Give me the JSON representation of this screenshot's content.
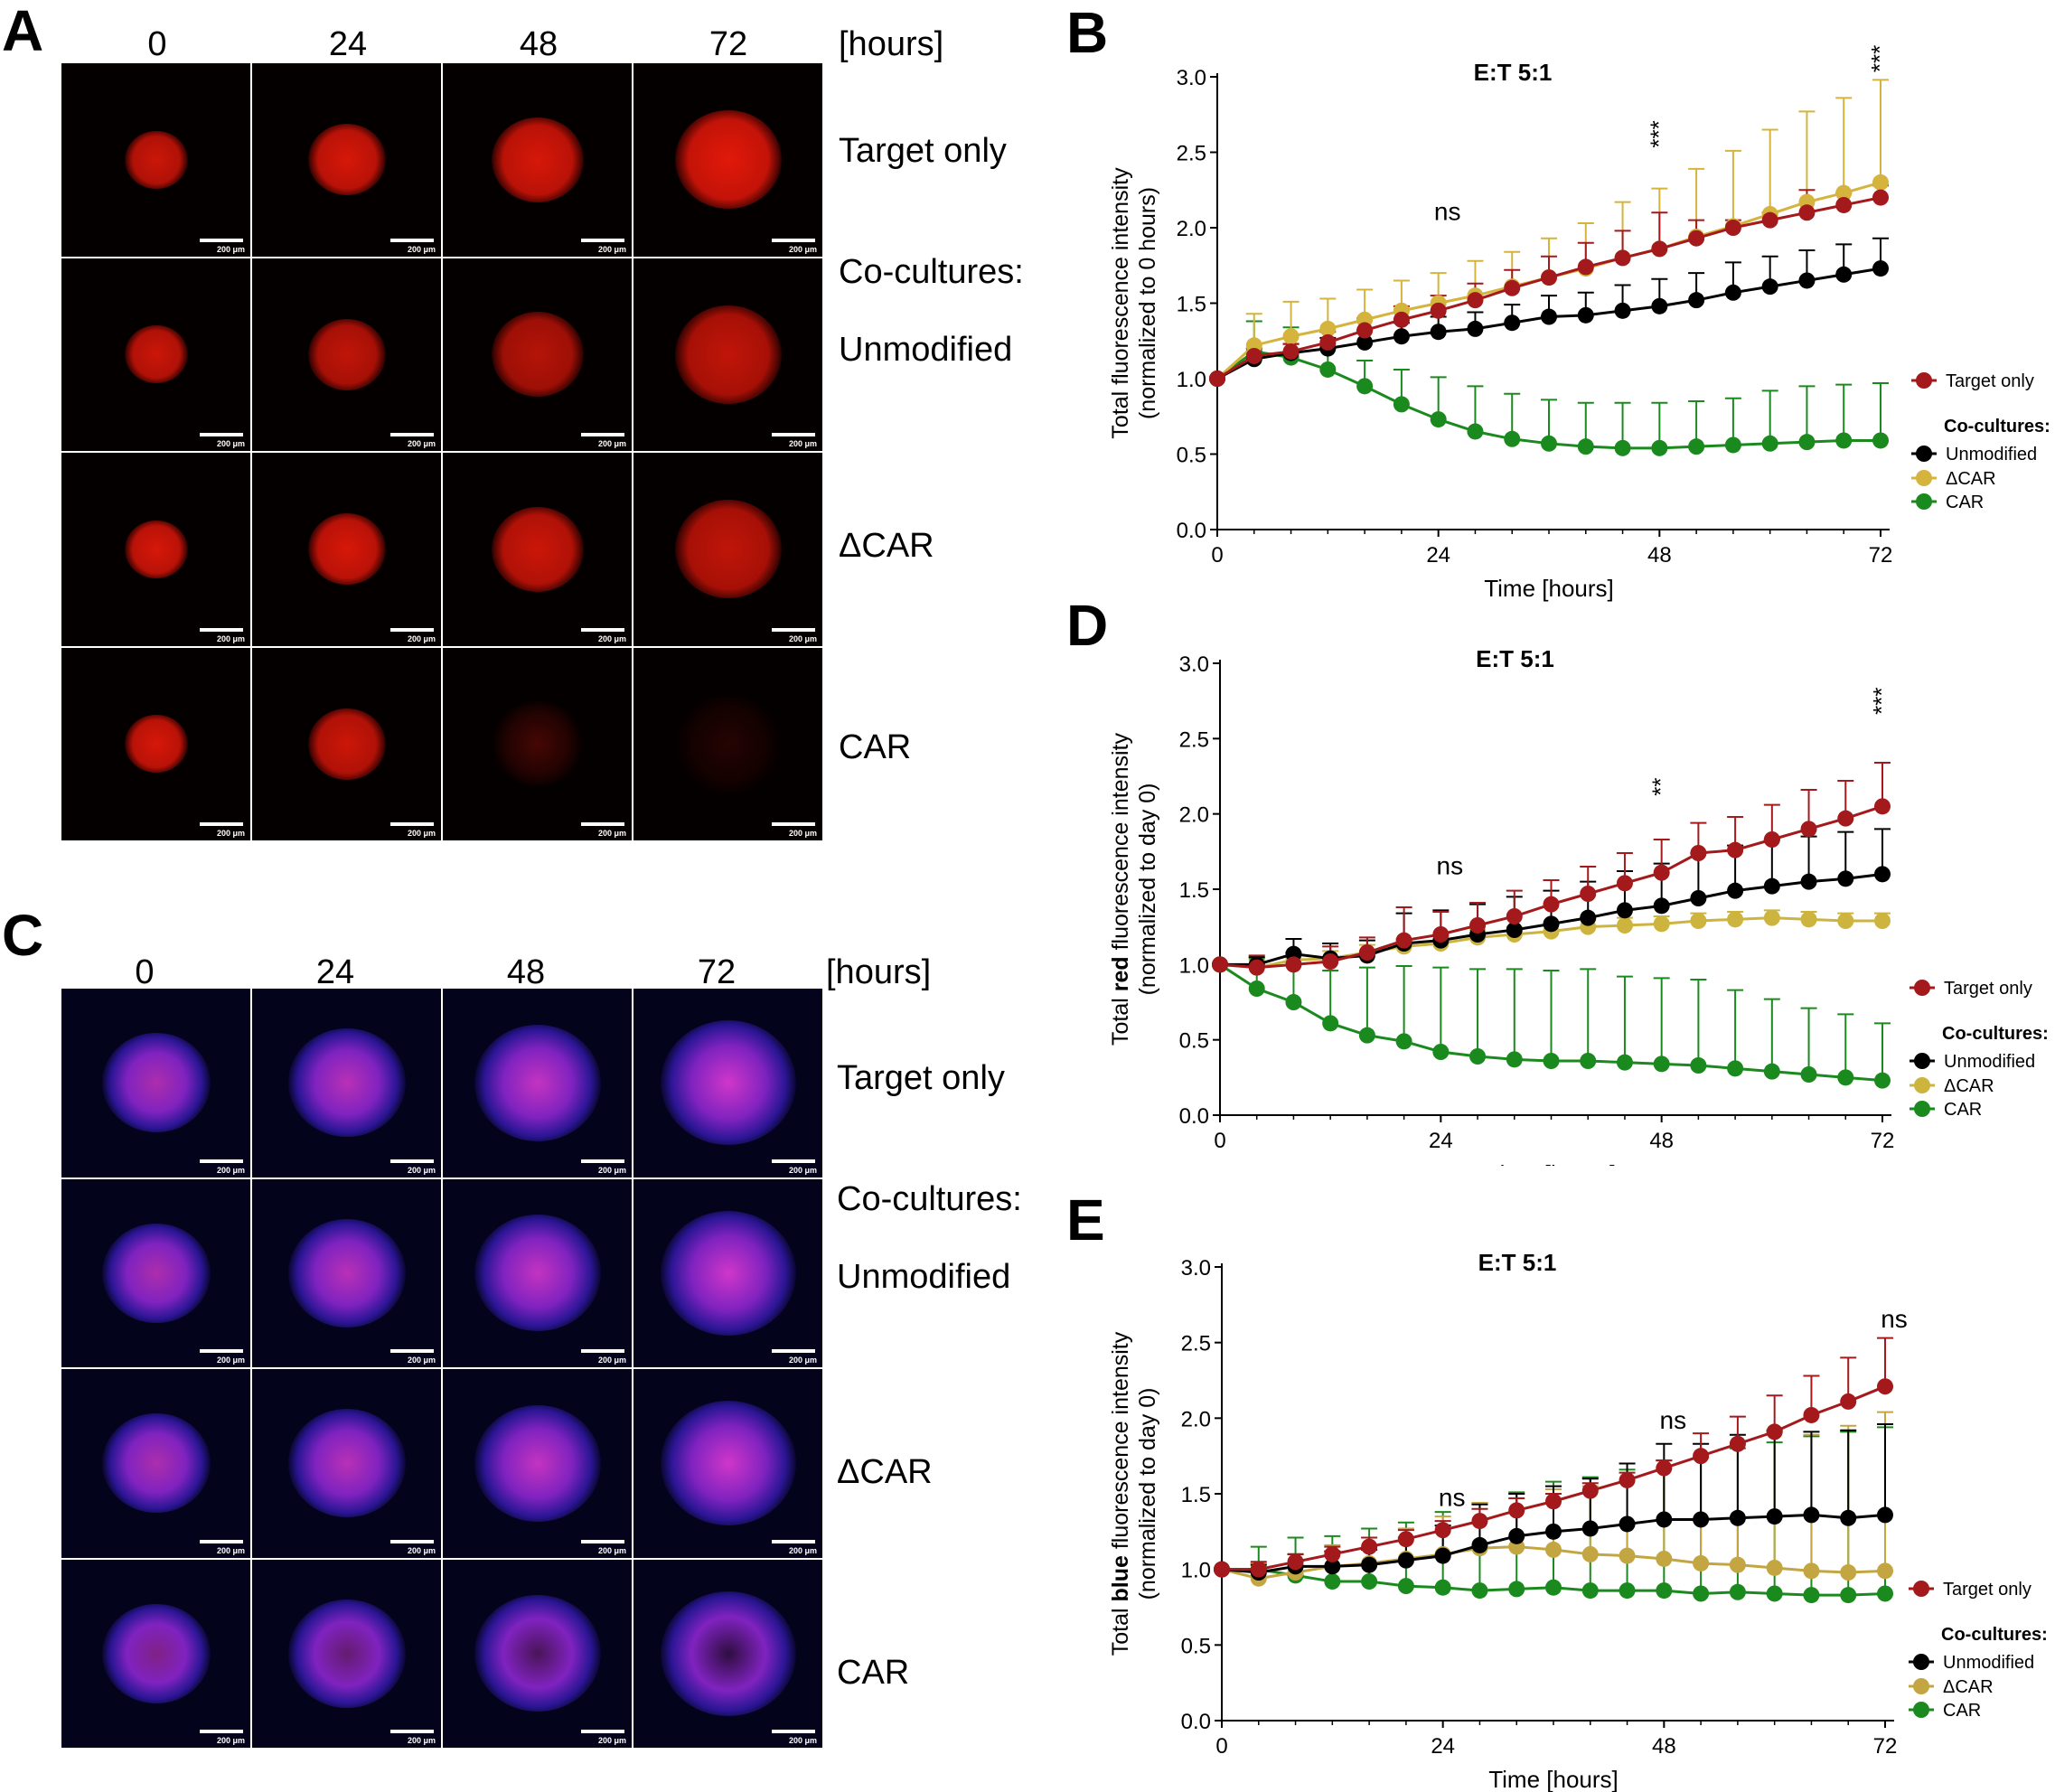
{
  "panels": {
    "A": "A",
    "B": "B",
    "C": "C",
    "D": "D",
    "E": "E"
  },
  "micrographs": {
    "time_columns": [
      "0",
      "24",
      "48",
      "72"
    ],
    "hours_label": "[hours]",
    "row_labels": [
      "Target only",
      "Co-cultures:",
      "Unmodified",
      "ΔCAR",
      "CAR"
    ],
    "scale_bar": "200 μm",
    "panel_A_intensity_per_row": [
      [
        0.9,
        0.95,
        0.95,
        1.0
      ],
      [
        0.9,
        0.85,
        0.8,
        0.85
      ],
      [
        0.95,
        0.95,
        0.9,
        0.85
      ],
      [
        0.95,
        0.9,
        0.3,
        0.15
      ]
    ]
  },
  "legend": {
    "target_only": "Target only",
    "co_cultures": "Co-cultures:",
    "unmodified": "Unmodified",
    "dcar": "ΔCAR",
    "car": "CAR"
  },
  "colors": {
    "target_only": "#a3191c",
    "unmodified": "#000000",
    "dcar_B": "#d4b43c",
    "dcar_D": "#cdb43e",
    "dcar_E": "#c3a641",
    "car": "#1b8a1e"
  },
  "chart_data": [
    {
      "id": "B",
      "type": "line",
      "title": "E:T 5:1",
      "xlabel": "Time [hours]",
      "ylabel_lines": [
        "Total fluorescence intensity",
        "(normalized to 0 hours)"
      ],
      "xlim": [
        0,
        72
      ],
      "ylim": [
        0,
        3.0
      ],
      "xticks": [
        "0",
        "24",
        "48",
        "72"
      ],
      "yticks": [
        "0.0",
        "0.5",
        "1.0",
        "1.5",
        "2.0",
        "2.5",
        "3.0"
      ],
      "x": [
        0,
        4,
        8,
        12,
        16,
        20,
        24,
        28,
        32,
        36,
        40,
        44,
        48,
        52,
        56,
        60,
        64,
        68,
        72
      ],
      "series": [
        {
          "name": "Target only",
          "values": [
            1.0,
            1.15,
            1.18,
            1.24,
            1.32,
            1.39,
            1.45,
            1.52,
            1.6,
            1.67,
            1.74,
            1.8,
            1.86,
            1.93,
            2.0,
            2.05,
            2.1,
            2.15,
            2.2
          ],
          "errors": [
            0,
            0.05,
            0.05,
            0.07,
            0.08,
            0.09,
            0.1,
            0.11,
            0.12,
            0.14,
            0.16,
            0.18,
            0.24,
            0.12,
            0.05,
            0.05,
            0.15,
            0.08,
            0.08
          ]
        },
        {
          "name": "Unmodified",
          "values": [
            1.0,
            1.13,
            1.17,
            1.2,
            1.24,
            1.28,
            1.31,
            1.33,
            1.37,
            1.41,
            1.42,
            1.45,
            1.48,
            1.52,
            1.57,
            1.61,
            1.65,
            1.69,
            1.73
          ],
          "errors": [
            0,
            0.05,
            0.06,
            0.07,
            0.08,
            0.09,
            0.1,
            0.11,
            0.12,
            0.14,
            0.15,
            0.17,
            0.18,
            0.18,
            0.2,
            0.2,
            0.2,
            0.2,
            0.2
          ]
        },
        {
          "name": "ΔCAR",
          "values": [
            1.0,
            1.22,
            1.28,
            1.33,
            1.39,
            1.45,
            1.5,
            1.55,
            1.61,
            1.67,
            1.73,
            1.8,
            1.86,
            1.94,
            2.01,
            2.09,
            2.17,
            2.23,
            2.3
          ],
          "errors": [
            0,
            0.21,
            0.23,
            0.2,
            0.2,
            0.2,
            0.2,
            0.23,
            0.23,
            0.26,
            0.3,
            0.37,
            0.4,
            0.45,
            0.5,
            0.56,
            0.6,
            0.63,
            0.68
          ]
        },
        {
          "name": "CAR",
          "values": [
            1.0,
            1.18,
            1.14,
            1.06,
            0.95,
            0.83,
            0.73,
            0.65,
            0.6,
            0.57,
            0.55,
            0.54,
            0.54,
            0.55,
            0.56,
            0.57,
            0.58,
            0.59,
            0.59
          ],
          "errors": [
            0,
            0.2,
            0.2,
            0.17,
            0.17,
            0.23,
            0.28,
            0.3,
            0.3,
            0.29,
            0.29,
            0.3,
            0.3,
            0.3,
            0.31,
            0.35,
            0.37,
            0.37,
            0.38
          ]
        }
      ],
      "annotations": [
        {
          "text": "ns",
          "x": 24,
          "y": 2.05,
          "rotate": false
        },
        {
          "text": "***",
          "x": 48,
          "y": 2.62,
          "rotate": true
        },
        {
          "text": "***",
          "x": 72,
          "y": 3.12,
          "rotate": true
        }
      ]
    },
    {
      "id": "D",
      "type": "line",
      "title": "E:T 5:1",
      "xlabel": "Time [hours]",
      "ylabel_pre": "Total ",
      "ylabel_bold": "red",
      "ylabel_post": " fluorescence intensity",
      "ylabel_line2": "(normalized to day 0)",
      "xlim": [
        0,
        72
      ],
      "ylim": [
        0,
        3.0
      ],
      "xticks": [
        "0",
        "24",
        "48",
        "72"
      ],
      "yticks": [
        "0.0",
        "0.5",
        "1.0",
        "1.5",
        "2.0",
        "2.5",
        "3.0"
      ],
      "x": [
        0,
        4,
        8,
        12,
        16,
        20,
        24,
        28,
        32,
        36,
        40,
        44,
        48,
        52,
        56,
        60,
        64,
        68,
        72
      ],
      "series": [
        {
          "name": "Target only",
          "values": [
            1.0,
            0.98,
            1.0,
            1.02,
            1.08,
            1.16,
            1.2,
            1.26,
            1.32,
            1.4,
            1.47,
            1.54,
            1.61,
            1.74,
            1.76,
            1.83,
            1.9,
            1.97,
            2.05
          ],
          "errors": [
            0,
            0.08,
            0.08,
            0.1,
            0.1,
            0.22,
            0.15,
            0.15,
            0.17,
            0.16,
            0.18,
            0.2,
            0.22,
            0.2,
            0.22,
            0.23,
            0.26,
            0.25,
            0.29
          ]
        },
        {
          "name": "Unmodified",
          "values": [
            1.0,
            1.0,
            1.07,
            1.04,
            1.06,
            1.14,
            1.16,
            1.2,
            1.23,
            1.27,
            1.31,
            1.36,
            1.39,
            1.44,
            1.49,
            1.52,
            1.55,
            1.57,
            1.6
          ],
          "errors": [
            0,
            0.05,
            0.1,
            0.1,
            0.1,
            0.2,
            0.2,
            0.2,
            0.22,
            0.22,
            0.24,
            0.26,
            0.28,
            0.3,
            0.3,
            0.31,
            0.3,
            0.31,
            0.3
          ]
        },
        {
          "name": "ΔCAR",
          "values": [
            1.0,
            0.98,
            1.03,
            1.04,
            1.08,
            1.12,
            1.14,
            1.18,
            1.2,
            1.22,
            1.25,
            1.26,
            1.27,
            1.29,
            1.3,
            1.31,
            1.3,
            1.29,
            1.29
          ],
          "errors": [
            0,
            0.05,
            0.05,
            0.05,
            0.05,
            0.05,
            0.05,
            0.05,
            0.05,
            0.05,
            0.05,
            0.05,
            0.05,
            0.05,
            0.05,
            0.05,
            0.05,
            0.05,
            0.05
          ]
        },
        {
          "name": "CAR",
          "values": [
            1.0,
            0.84,
            0.75,
            0.61,
            0.53,
            0.49,
            0.42,
            0.39,
            0.37,
            0.36,
            0.36,
            0.35,
            0.34,
            0.33,
            0.31,
            0.29,
            0.27,
            0.25,
            0.23
          ],
          "errors": [
            0,
            0.2,
            0.25,
            0.35,
            0.45,
            0.5,
            0.56,
            0.58,
            0.6,
            0.6,
            0.61,
            0.57,
            0.57,
            0.57,
            0.52,
            0.48,
            0.44,
            0.42,
            0.38
          ]
        }
      ],
      "annotations": [
        {
          "text": "ns",
          "x": 24,
          "y": 1.6,
          "rotate": false
        },
        {
          "text": "**",
          "x": 48,
          "y": 2.18,
          "rotate": true
        },
        {
          "text": "***",
          "x": 72,
          "y": 2.75,
          "rotate": true
        }
      ]
    },
    {
      "id": "E",
      "type": "line",
      "title": "E:T 5:1",
      "xlabel": "Time [hours]",
      "ylabel_pre": "Total ",
      "ylabel_bold": "blue",
      "ylabel_post": " fluorescence intensity",
      "ylabel_line2": "(normalized to day 0)",
      "xlim": [
        0,
        72
      ],
      "ylim": [
        0,
        3.0
      ],
      "xticks": [
        "0",
        "24",
        "48",
        "72"
      ],
      "yticks": [
        "0.0",
        "0.5",
        "1.0",
        "1.5",
        "2.0",
        "2.5",
        "3.0"
      ],
      "x": [
        0,
        4,
        8,
        12,
        16,
        20,
        24,
        28,
        32,
        36,
        40,
        44,
        48,
        52,
        56,
        60,
        64,
        68,
        72
      ],
      "series": [
        {
          "name": "Target only",
          "values": [
            1.0,
            1.0,
            1.05,
            1.1,
            1.15,
            1.2,
            1.26,
            1.32,
            1.39,
            1.45,
            1.52,
            1.59,
            1.67,
            1.75,
            1.83,
            1.91,
            2.02,
            2.11,
            2.21
          ],
          "errors": [
            0,
            0.05,
            0.05,
            0.05,
            0.06,
            0.06,
            0.06,
            0.08,
            0.08,
            0.05,
            0.05,
            0.05,
            0.05,
            0.15,
            0.18,
            0.24,
            0.26,
            0.29,
            0.32
          ]
        },
        {
          "name": "Unmodified",
          "values": [
            1.0,
            0.98,
            1.02,
            1.02,
            1.03,
            1.06,
            1.09,
            1.16,
            1.22,
            1.25,
            1.27,
            1.3,
            1.33,
            1.33,
            1.34,
            1.35,
            1.36,
            1.34,
            1.36
          ],
          "errors": [
            0,
            0.05,
            0.08,
            0.1,
            0.1,
            0.15,
            0.2,
            0.27,
            0.28,
            0.3,
            0.33,
            0.4,
            0.5,
            0.5,
            0.55,
            0.57,
            0.55,
            0.58,
            0.6
          ]
        },
        {
          "name": "ΔCAR",
          "values": [
            1.0,
            0.94,
            0.98,
            1.02,
            1.04,
            1.07,
            1.1,
            1.14,
            1.15,
            1.13,
            1.1,
            1.09,
            1.07,
            1.04,
            1.03,
            1.01,
            0.99,
            0.98,
            0.99
          ],
          "errors": [
            0,
            0.1,
            0.12,
            0.14,
            0.17,
            0.2,
            0.25,
            0.3,
            0.35,
            0.4,
            0.45,
            0.5,
            0.6,
            0.7,
            0.8,
            0.9,
            0.9,
            0.97,
            1.05
          ]
        },
        {
          "name": "CAR",
          "values": [
            1.0,
            1.0,
            0.96,
            0.92,
            0.92,
            0.89,
            0.88,
            0.86,
            0.87,
            0.88,
            0.86,
            0.86,
            0.86,
            0.84,
            0.85,
            0.84,
            0.83,
            0.83,
            0.84
          ],
          "errors": [
            0,
            0.15,
            0.25,
            0.3,
            0.35,
            0.42,
            0.5,
            0.58,
            0.64,
            0.7,
            0.75,
            0.8,
            0.86,
            0.9,
            0.95,
            1.0,
            1.05,
            1.08,
            1.1
          ]
        }
      ],
      "annotations": [
        {
          "text": "ns",
          "x": 24,
          "y": 1.42,
          "rotate": false
        },
        {
          "text": "ns",
          "x": 48,
          "y": 1.93,
          "rotate": false
        },
        {
          "text": "ns",
          "x": 72,
          "y": 2.6,
          "rotate": false
        }
      ]
    }
  ]
}
